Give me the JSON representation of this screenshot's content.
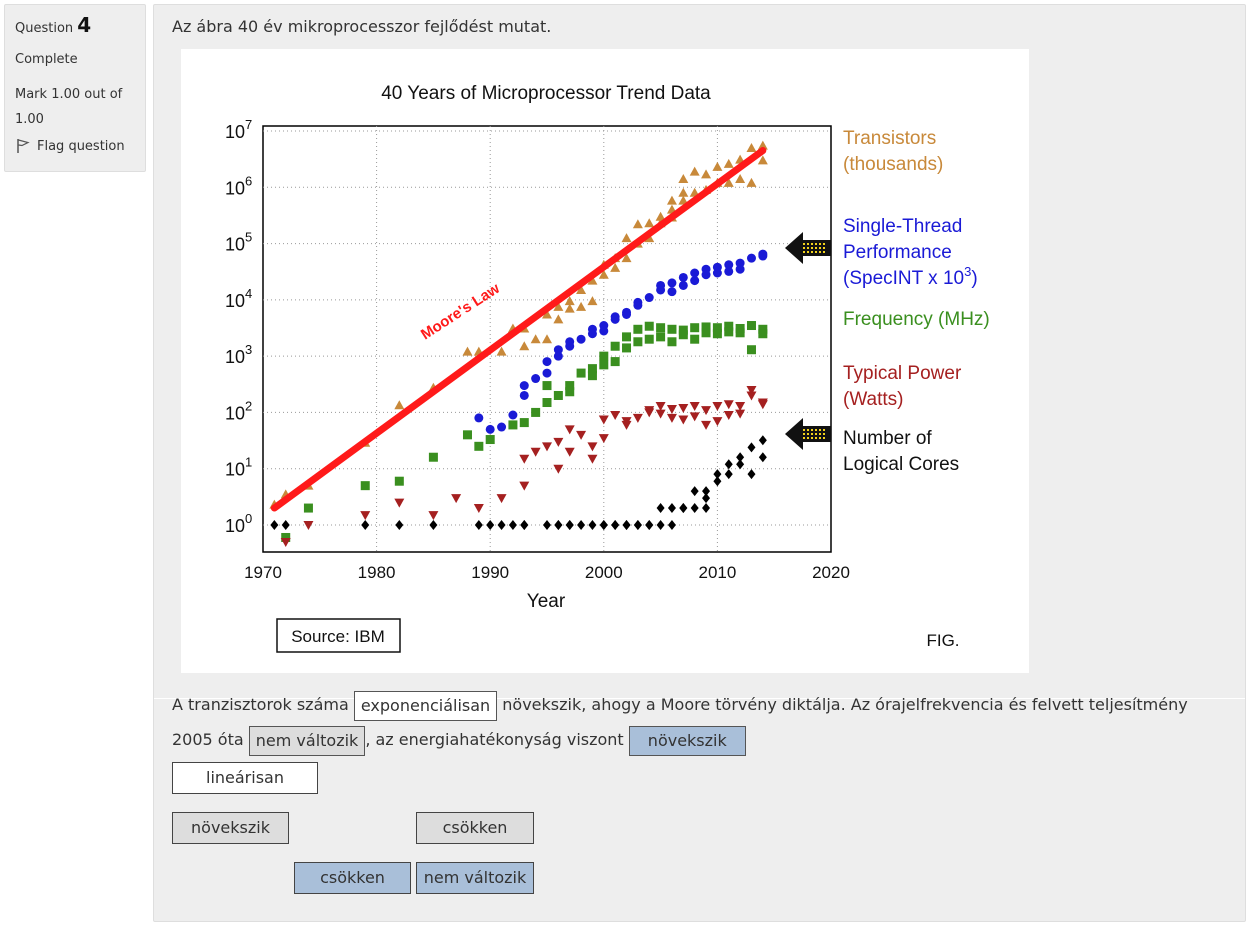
{
  "question_info": {
    "label": "Question",
    "number": "4",
    "state": "Complete",
    "mark": "Mark 1.00 out of 1.00",
    "flag_label": "Flag question"
  },
  "question_text": "Az ábra 40 év mikroprocesszor fejlődést mutat.",
  "figure": {
    "title": "40 Years of Microprocessor Trend Data",
    "xlabel": "Year",
    "source": "Source: IBM",
    "fig_label": "FIG.",
    "moores_law": "Moore's Law",
    "x_ticks": [
      "1970",
      "1980",
      "1990",
      "2000",
      "2010",
      "2020"
    ],
    "y_ticks": [
      "0",
      "1",
      "2",
      "3",
      "4",
      "5",
      "6",
      "7"
    ],
    "legend": {
      "transistors_1": "Transistors",
      "transistors_2": "(thousands)",
      "single_1": "Single-Thread",
      "single_2": "Performance",
      "single_3": "(SpecINT x 10",
      "single_3_exp": "3",
      "single_3_end": ")",
      "frequency": "Frequency (MHz)",
      "power_1": "Typical Power",
      "power_2": "(Watts)",
      "cores_1": "Number of",
      "cores_2": "Logical Cores"
    },
    "colors": {
      "transistors": "#c8893a",
      "single_thread": "#1a1ad6",
      "frequency": "#3a8f1f",
      "power": "#a52020",
      "cores": "#000000",
      "moore": "#ff1a1a"
    }
  },
  "chart_data": {
    "type": "scatter",
    "title": "40 Years of Microprocessor Trend Data",
    "xlabel": "Year",
    "ylabel": "",
    "xlim": [
      1970,
      2020
    ],
    "ylim_log10": [
      0,
      7
    ],
    "y_scale": "log",
    "trend_line": {
      "name": "Moore's Law",
      "x": [
        1971,
        2014
      ],
      "y": [
        2,
        4500000
      ]
    },
    "series": [
      {
        "name": "Transistors (thousands)",
        "marker": "triangle-up",
        "x": [
          1971,
          1972,
          1974,
          1979,
          1982,
          1985,
          1988,
          1989,
          1991,
          1992,
          1993,
          1993,
          1994,
          1995,
          1995,
          1996,
          1996,
          1997,
          1997,
          1998,
          1998,
          1999,
          1999,
          2000,
          2000,
          2001,
          2001,
          2002,
          2002,
          2003,
          2003,
          2004,
          2004,
          2005,
          2005,
          2006,
          2006,
          2006,
          2007,
          2007,
          2007,
          2008,
          2008,
          2009,
          2009,
          2010,
          2010,
          2011,
          2011,
          2012,
          2012,
          2013,
          2013,
          2014,
          2014
        ],
        "y": [
          2.3,
          3.5,
          5,
          29,
          134,
          275,
          1200,
          1200,
          1200,
          3100,
          3100,
          1500,
          2000,
          5500,
          2000,
          7500,
          4500,
          9500,
          7000,
          7500,
          15000,
          9500,
          22000,
          42000,
          28000,
          37000,
          55000,
          125000,
          55000,
          220000,
          100000,
          125000,
          230000,
          300000,
          230000,
          290000,
          580000,
          400000,
          800000,
          580000,
          1400000,
          800000,
          1900000,
          900000,
          1700000,
          2300000,
          1200000,
          2600000,
          1200000,
          1400000,
          3100000,
          5000000,
          1200000,
          5500000,
          3000000
        ]
      },
      {
        "name": "Single-Thread Performance (SpecINT x 10^3)",
        "marker": "circle",
        "x": [
          1989,
          1990,
          1991,
          1992,
          1993,
          1993,
          1994,
          1995,
          1995,
          1996,
          1996,
          1997,
          1997,
          1998,
          1999,
          1999,
          2000,
          2000,
          2001,
          2001,
          2002,
          2002,
          2003,
          2003,
          2004,
          2005,
          2005,
          2006,
          2006,
          2007,
          2007,
          2008,
          2008,
          2009,
          2009,
          2010,
          2010,
          2011,
          2011,
          2012,
          2012,
          2013,
          2014,
          2014
        ],
        "y": [
          80,
          50,
          55,
          90,
          200,
          300,
          400,
          500,
          800,
          1000,
          1300,
          1500,
          1800,
          2000,
          2500,
          3000,
          3500,
          2800,
          4500,
          5000,
          6000,
          5500,
          9000,
          8000,
          11000,
          15000,
          18000,
          20000,
          14000,
          25000,
          18000,
          30000,
          22000,
          35000,
          28000,
          38000,
          30000,
          42000,
          32000,
          45000,
          35000,
          55000,
          60000,
          65000
        ]
      },
      {
        "name": "Frequency (MHz)",
        "marker": "square",
        "x": [
          1972,
          1974,
          1979,
          1982,
          1985,
          1988,
          1989,
          1990,
          1992,
          1993,
          1994,
          1995,
          1995,
          1996,
          1997,
          1997,
          1998,
          1999,
          1999,
          2000,
          2000,
          2001,
          2001,
          2002,
          2002,
          2003,
          2003,
          2004,
          2004,
          2005,
          2005,
          2006,
          2006,
          2007,
          2007,
          2008,
          2008,
          2009,
          2009,
          2010,
          2010,
          2011,
          2011,
          2012,
          2012,
          2013,
          2013,
          2014,
          2014
        ],
        "y": [
          0.6,
          2,
          5,
          6,
          16,
          40,
          25,
          33,
          60,
          66,
          100,
          150,
          300,
          200,
          300,
          233,
          500,
          450,
          600,
          1000,
          700,
          1500,
          800,
          2200,
          1400,
          3000,
          1800,
          3400,
          2000,
          3200,
          2200,
          3000,
          1800,
          2900,
          2400,
          3200,
          2000,
          3300,
          2600,
          3200,
          2500,
          3400,
          2700,
          3100,
          2600,
          3500,
          1300,
          3000,
          2500
        ]
      },
      {
        "name": "Typical Power (Watts)",
        "marker": "triangle-down",
        "x": [
          1972,
          1974,
          1979,
          1982,
          1985,
          1987,
          1989,
          1991,
          1993,
          1993,
          1994,
          1995,
          1996,
          1996,
          1997,
          1997,
          1998,
          1999,
          1999,
          2000,
          2000,
          2001,
          2002,
          2002,
          2003,
          2004,
          2004,
          2005,
          2005,
          2006,
          2006,
          2007,
          2007,
          2008,
          2008,
          2009,
          2009,
          2010,
          2010,
          2011,
          2011,
          2012,
          2012,
          2013,
          2013,
          2014,
          2014
        ],
        "y": [
          0.5,
          1,
          1.5,
          2.5,
          1.5,
          3,
          2,
          3,
          5,
          15,
          20,
          25,
          30,
          10,
          20,
          50,
          40,
          15,
          25,
          35,
          75,
          90,
          60,
          70,
          80,
          110,
          100,
          130,
          95,
          115,
          80,
          120,
          75,
          130,
          85,
          110,
          60,
          130,
          70,
          140,
          90,
          130,
          95,
          250,
          200,
          150,
          140
        ]
      },
      {
        "name": "Number of Logical Cores",
        "marker": "diamond",
        "x": [
          1971,
          1972,
          1979,
          1982,
          1985,
          1989,
          1990,
          1991,
          1992,
          1993,
          1993,
          1995,
          1996,
          1996,
          1997,
          1997,
          1998,
          1999,
          2000,
          2000,
          2001,
          2001,
          2002,
          2002,
          2003,
          2003,
          2004,
          2004,
          2005,
          2005,
          2006,
          2006,
          2007,
          2007,
          2008,
          2008,
          2009,
          2009,
          2009,
          2010,
          2010,
          2011,
          2011,
          2012,
          2012,
          2013,
          2013,
          2014,
          2014
        ],
        "y": [
          1,
          1,
          1,
          1,
          1,
          1,
          1,
          1,
          1,
          1,
          1,
          1,
          1,
          1,
          1,
          1,
          1,
          1,
          1,
          1,
          1,
          1,
          1,
          1,
          1,
          1,
          1,
          1,
          2,
          1,
          2,
          1,
          2,
          2,
          2,
          4,
          2,
          4,
          3,
          8,
          6,
          12,
          8,
          16,
          12,
          8,
          24,
          16,
          32
        ]
      }
    ]
  },
  "sentence": {
    "part1": "A tranzisztorok száma",
    "blank1": "exponenciálisan",
    "part2": "növekszik, ahogy a Moore törvény diktálja. Az órajelfrekvencia és felvett teljesítmény",
    "part3": "2005 óta",
    "blank2": "nem változik",
    "part4": ", az energiahatékonyság viszont",
    "blank3": "növekszik"
  },
  "drag_items": [
    {
      "label": "lineárisan"
    },
    {
      "label": "növekszik"
    },
    {
      "label": "csökken"
    },
    {
      "label": "csökken"
    },
    {
      "label": "nem változik"
    }
  ]
}
